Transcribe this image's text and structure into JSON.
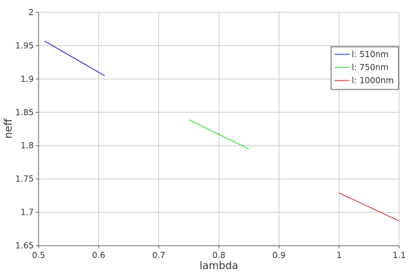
{
  "chart_data": {
    "type": "line",
    "xlabel": "lambda",
    "ylabel": "neff",
    "xlim": [
      0.5,
      1.1
    ],
    "ylim": [
      1.65,
      2.0
    ],
    "xticks": [
      "0.5",
      "0.6",
      "0.7",
      "0.8",
      "0.9",
      "1",
      "1.1"
    ],
    "yticks": [
      "1.65",
      "1.7",
      "1.75",
      "1.8",
      "1.85",
      "1.9",
      "1.95",
      "2"
    ],
    "grid": true,
    "legend_position": "top-right",
    "series": [
      {
        "name": "l: 510nm",
        "color": "#0000c8",
        "x": [
          0.51,
          0.61
        ],
        "y": [
          1.957,
          1.905
        ]
      },
      {
        "name": "l: 750nm",
        "color": "#00e000",
        "x": [
          0.75,
          0.85
        ],
        "y": [
          1.839,
          1.795
        ]
      },
      {
        "name": "l: 1000nm",
        "color": "#cc0000",
        "x": [
          1.0,
          1.1
        ],
        "y": [
          1.729,
          1.687
        ]
      }
    ]
  }
}
